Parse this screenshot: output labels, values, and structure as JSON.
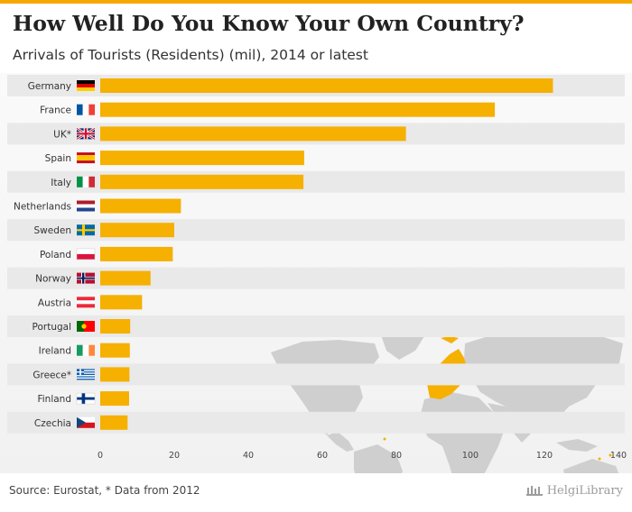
{
  "header": {
    "title": "How Well Do You Know Your Own Country?",
    "subtitle": "Arrivals of Tourists (Residents) (mil), 2014 or latest"
  },
  "footer": {
    "source": "Source: Eurostat, * Data from 2012",
    "brand": "HelgiLibrary"
  },
  "colors": {
    "bar": "#f5b000",
    "accent": "#f5a800",
    "band": "#e9e9e9",
    "map_land": "#cfcfcf",
    "map_highlight": "#f5b000"
  },
  "chart_data": {
    "type": "bar",
    "orientation": "horizontal",
    "title": "How Well Do You Know Your Own Country?",
    "subtitle": "Arrivals of Tourists (Residents) (mil), 2014 or latest",
    "xlabel": "",
    "ylabel": "",
    "xlim": [
      0,
      140
    ],
    "xticks": [
      0,
      20,
      40,
      60,
      80,
      100,
      120,
      140
    ],
    "grid": false,
    "categories": [
      "Germany",
      "France",
      "UK*",
      "Spain",
      "Italy",
      "Netherlands",
      "Sweden",
      "Poland",
      "Norway",
      "Austria",
      "Portugal",
      "Ireland",
      "Greece*",
      "Finland",
      "Czechia"
    ],
    "flags": [
      "de",
      "fr",
      "gb",
      "es",
      "it",
      "nl",
      "se",
      "pl",
      "no",
      "at",
      "pt",
      "ie",
      "gr",
      "fi",
      "cz"
    ],
    "values": [
      122.3,
      106.6,
      82.6,
      55.1,
      54.9,
      21.8,
      20.0,
      19.6,
      13.6,
      11.3,
      8.1,
      8.0,
      7.9,
      7.8,
      7.4
    ]
  }
}
